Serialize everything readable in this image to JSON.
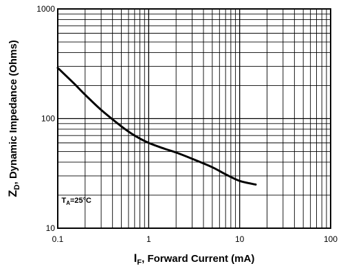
{
  "chart_data": {
    "type": "line",
    "xscale": "log",
    "yscale": "log",
    "xlim": [
      0.1,
      100
    ],
    "ylim": [
      10,
      1000
    ],
    "grid": true,
    "xlabel": {
      "main": "I",
      "sub": "F",
      "rest": ", Forward Current (mA)"
    },
    "ylabel": {
      "main": "Z",
      "sub": "D",
      "rest": ", Dynamic Impedance (Ohms)"
    },
    "x_tick_labels": [
      "0.1",
      "1",
      "10",
      "100"
    ],
    "y_tick_labels": [
      "10",
      "100",
      "1000"
    ],
    "annotation": {
      "main": "T",
      "sub": "A",
      "rest": "=25°C",
      "x": 0.11,
      "y": 17
    },
    "series": [
      {
        "x": [
          0.1,
          0.15,
          0.2,
          0.3,
          0.5,
          0.7,
          1,
          1.5,
          2,
          3,
          5,
          7,
          10,
          15
        ],
        "y": [
          290,
          210,
          165,
          120,
          85,
          70,
          60,
          53,
          49,
          43,
          36,
          31,
          27,
          25
        ],
        "color": "#000000"
      }
    ]
  }
}
